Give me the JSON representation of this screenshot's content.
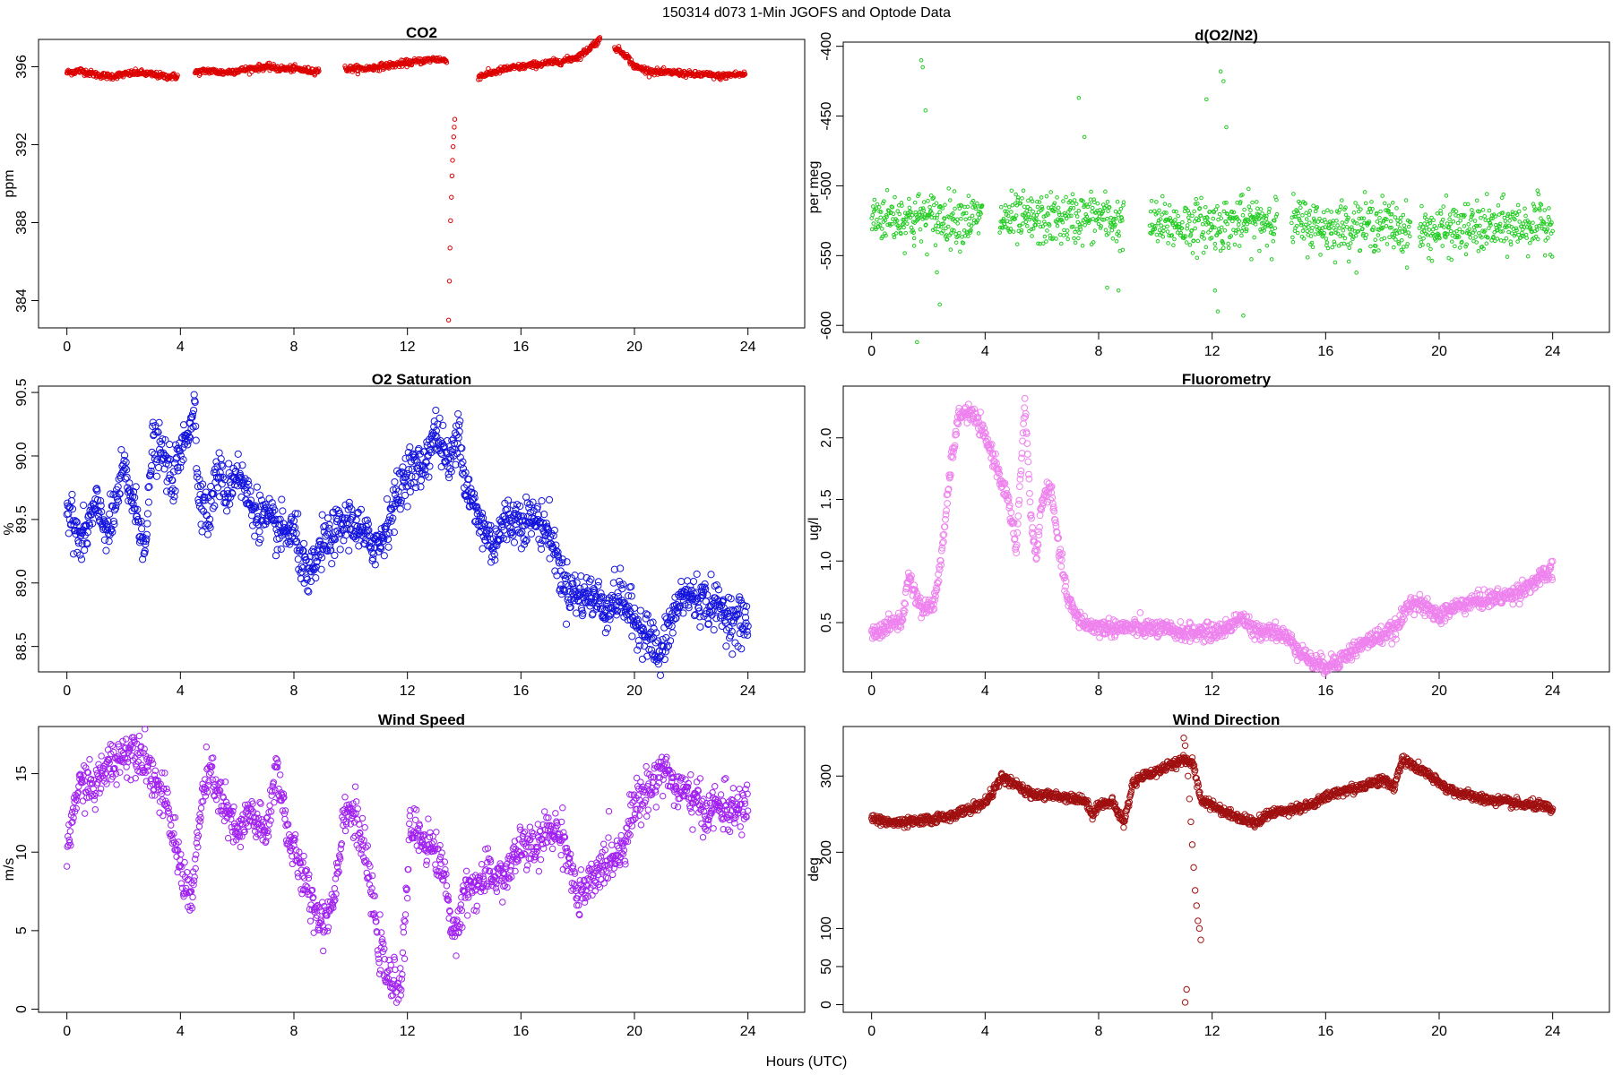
{
  "figure": {
    "title": "150314   d073   1-Min  JGOFS and Optode Data",
    "xlabel": "Hours (UTC)"
  },
  "chart_data": [
    {
      "id": "co2",
      "type": "scatter",
      "title": "CO2",
      "ylabel": "ppm",
      "color": "#dd0000",
      "marker_radius": 2.2,
      "xlim": [
        -1,
        26
      ],
      "ylim": [
        382.6,
        397.4
      ],
      "xticks": [
        0,
        4,
        8,
        12,
        16,
        20,
        24
      ],
      "yticks": [
        384,
        388,
        392,
        396
      ],
      "x_knots": [
        0,
        0.5,
        1,
        1.5,
        2,
        2.5,
        3,
        3.5,
        3.9,
        4.5,
        5,
        5.5,
        6,
        6.5,
        7,
        7.5,
        8,
        8.5,
        8.9,
        9.8,
        10.5,
        11,
        11.5,
        12,
        12.5,
        13,
        13.4,
        14.5,
        15,
        15.5,
        16,
        16.5,
        17,
        17.5,
        18,
        18.3,
        18.6,
        18.8,
        19.0,
        19.3,
        19.7,
        20,
        20.5,
        21,
        21.5,
        22,
        22.5,
        23,
        23.5,
        23.9
      ],
      "y_knots": [
        395.7,
        395.8,
        395.6,
        395.5,
        395.6,
        395.7,
        395.6,
        395.5,
        395.5,
        395.7,
        395.8,
        395.7,
        395.8,
        395.9,
        396.0,
        395.9,
        395.9,
        395.8,
        395.8,
        395.9,
        395.9,
        396.0,
        396.1,
        396.2,
        396.3,
        396.4,
        396.3,
        395.5,
        395.7,
        395.9,
        396.0,
        396.1,
        396.2,
        396.3,
        396.5,
        396.8,
        397.2,
        397.4,
        397.2,
        397.0,
        396.6,
        396.0,
        395.8,
        395.7,
        395.7,
        395.6,
        395.6,
        395.5,
        395.6,
        395.6
      ],
      "gaps": [
        [
          3.9,
          4.5
        ],
        [
          8.9,
          9.8
        ],
        [
          13.4,
          14.5
        ],
        [
          18.8,
          19.3
        ]
      ],
      "noise": 0.08,
      "spike": {
        "x": [
          13.45,
          13.48,
          13.5,
          13.52,
          13.55,
          13.57,
          13.59,
          13.61,
          13.63,
          13.65,
          13.67
        ],
        "y": [
          383.0,
          385.0,
          386.7,
          388.1,
          389.3,
          390.4,
          391.2,
          391.9,
          392.4,
          392.9,
          393.3
        ]
      }
    },
    {
      "id": "do2n2",
      "type": "scatter",
      "title": "d(O2/N2)",
      "ylabel": "per meg",
      "color": "#22cc22",
      "marker_radius": 1.8,
      "xlim": [
        -1,
        26
      ],
      "ylim": [
        -605,
        -397
      ],
      "xticks": [
        0,
        4,
        8,
        12,
        16,
        20,
        24
      ],
      "yticks": [
        -400,
        -450,
        -500,
        -550,
        -600
      ],
      "x_knots": [
        0,
        2,
        4,
        6,
        8,
        9,
        12,
        14.3,
        16,
        18,
        19,
        22,
        24
      ],
      "y_knots": [
        -522,
        -523,
        -524,
        -525,
        -522,
        -528,
        -528,
        -524,
        -530,
        -527,
        -533,
        -530,
        -527
      ],
      "gaps": [
        [
          3.9,
          4.5
        ],
        [
          8.9,
          9.8
        ],
        [
          14.3,
          14.8
        ],
        [
          19.0,
          19.3
        ]
      ],
      "noise": 9,
      "outliers": {
        "x": [
          1.6,
          1.75,
          1.8,
          1.9,
          2.4,
          7.3,
          7.5,
          8.3,
          8.7,
          11.8,
          12.1,
          12.2,
          12.3,
          12.4,
          12.5,
          13.1,
          2.3,
          1.5
        ],
        "y": [
          -612,
          -410,
          -415,
          -446,
          -585,
          -437,
          -465,
          -573,
          -575,
          -438,
          -575,
          -590,
          -418,
          -425,
          -458,
          -593,
          -562,
          -543
        ]
      }
    },
    {
      "id": "o2sat",
      "type": "scatter",
      "title": "O2 Saturation",
      "ylabel": "%",
      "color": "#1414dd",
      "marker_radius": 3.6,
      "xlim": [
        -1,
        26
      ],
      "ylim": [
        88.3,
        90.55
      ],
      "xticks": [
        0,
        4,
        8,
        12,
        16,
        20,
        24
      ],
      "yticks": [
        88.5,
        89.0,
        89.5,
        90.0,
        90.5
      ],
      "x_knots": [
        0,
        0.5,
        1,
        1.5,
        2,
        2.5,
        2.8,
        3.0,
        3.4,
        3.7,
        4,
        4.5,
        4.6,
        5,
        5.3,
        5.6,
        6,
        6.5,
        7,
        7.5,
        8,
        8.5,
        9,
        9.5,
        10,
        10.5,
        11,
        11.5,
        12,
        12.5,
        13,
        13.5,
        13.8,
        14,
        14.5,
        15,
        15.5,
        16,
        16.5,
        17,
        17.5,
        18,
        18.5,
        19,
        19.5,
        20,
        20.5,
        20.9,
        21.3,
        21.7,
        22,
        22.5,
        23,
        23.5,
        24
      ],
      "y_knots": [
        89.6,
        89.3,
        89.6,
        89.4,
        89.9,
        89.5,
        89.3,
        90.1,
        90.0,
        89.8,
        90.0,
        90.4,
        89.8,
        89.5,
        89.9,
        89.7,
        89.9,
        89.6,
        89.5,
        89.4,
        89.4,
        89.0,
        89.3,
        89.4,
        89.5,
        89.35,
        89.3,
        89.6,
        89.9,
        89.9,
        90.2,
        89.9,
        90.3,
        89.8,
        89.5,
        89.3,
        89.5,
        89.5,
        89.5,
        89.4,
        89.0,
        88.9,
        88.9,
        88.8,
        88.9,
        88.7,
        88.6,
        88.4,
        88.7,
        88.9,
        88.9,
        88.85,
        88.8,
        88.7,
        88.7
      ],
      "gaps": [],
      "noise": 0.09
    },
    {
      "id": "fluor",
      "type": "scatter",
      "title": "Fluorometry",
      "ylabel": "ug/l",
      "color": "#ee82ee",
      "marker_radius": 3.4,
      "xlim": [
        -1,
        26
      ],
      "ylim": [
        0.1,
        2.42
      ],
      "xticks": [
        0,
        4,
        8,
        12,
        16,
        20,
        24
      ],
      "yticks": [
        0.5,
        1.0,
        1.5,
        2.0
      ],
      "x_knots": [
        0,
        0.4,
        0.8,
        1.1,
        1.3,
        1.5,
        1.8,
        2.2,
        2.5,
        2.8,
        3.1,
        3.5,
        3.8,
        4.2,
        4.5,
        4.8,
        5.1,
        5.4,
        5.6,
        5.8,
        6.0,
        6.3,
        6.6,
        6.9,
        7.2,
        7.6,
        8,
        9,
        10,
        11,
        12,
        12.5,
        13,
        13.5,
        14,
        14.5,
        15,
        15.5,
        16,
        16.5,
        17,
        17.5,
        18,
        18.5,
        19,
        19.5,
        20,
        20.5,
        21,
        21.5,
        22,
        22.5,
        23,
        23.5,
        24
      ],
      "y_knots": [
        0.4,
        0.45,
        0.5,
        0.52,
        0.9,
        0.75,
        0.6,
        0.65,
        1.1,
        1.8,
        2.2,
        2.2,
        2.1,
        1.9,
        1.7,
        1.5,
        1.1,
        2.3,
        1.4,
        1.0,
        1.5,
        1.6,
        1.1,
        0.7,
        0.55,
        0.48,
        0.46,
        0.46,
        0.45,
        0.42,
        0.42,
        0.45,
        0.55,
        0.42,
        0.45,
        0.4,
        0.3,
        0.18,
        0.15,
        0.2,
        0.28,
        0.35,
        0.4,
        0.45,
        0.68,
        0.62,
        0.55,
        0.62,
        0.66,
        0.68,
        0.7,
        0.72,
        0.78,
        0.85,
        0.92
      ],
      "gaps": [],
      "noise": 0.035
    },
    {
      "id": "wspd",
      "type": "scatter",
      "title": "Wind Speed",
      "ylabel": "m/s",
      "color": "#a020f0",
      "marker_radius": 3.2,
      "xlim": [
        -1,
        26
      ],
      "ylim": [
        -0.2,
        18
      ],
      "xticks": [
        0,
        4,
        8,
        12,
        16,
        20,
        24
      ],
      "yticks": [
        0,
        5,
        10,
        15
      ],
      "x_knots": [
        0,
        0.3,
        0.6,
        1,
        1.4,
        1.8,
        2.2,
        2.6,
        3,
        3.5,
        4,
        4.4,
        4.8,
        5.1,
        5.5,
        6,
        6.5,
        7,
        7.4,
        7.8,
        8.2,
        8.6,
        9,
        9.4,
        9.8,
        10.2,
        10.6,
        11,
        11.4,
        11.8,
        12.1,
        12.5,
        13,
        13.4,
        13.6,
        14,
        14.5,
        15,
        15.5,
        16,
        16.5,
        17,
        17.5,
        18,
        18.5,
        19,
        19.5,
        20,
        20.5,
        21,
        21.5,
        22,
        22.5,
        23,
        23.5,
        24
      ],
      "y_knots": [
        9.8,
        13.5,
        14.5,
        14,
        15.5,
        16,
        16.5,
        16.5,
        15,
        13,
        9,
        7,
        14,
        15,
        13,
        11,
        12.5,
        11,
        15.5,
        11,
        9,
        7,
        5.5,
        7,
        13,
        12,
        9,
        4,
        1.5,
        2,
        11.5,
        11,
        10,
        8,
        4,
        7.5,
        8,
        8.5,
        8.5,
        10.5,
        10,
        11.5,
        11,
        7,
        8,
        9.5,
        10,
        13,
        14,
        15.5,
        14,
        13.5,
        12.5,
        13,
        12.5,
        13
      ],
      "gaps": [],
      "noise": 0.7
    },
    {
      "id": "wdir",
      "type": "scatter",
      "title": "Wind Direction",
      "ylabel": "deg",
      "color": "#a01010",
      "marker_radius": 3.2,
      "xlim": [
        -1,
        26
      ],
      "ylim": [
        -10,
        365
      ],
      "xticks": [
        0,
        4,
        8,
        12,
        16,
        20,
        24
      ],
      "yticks": [
        0,
        50,
        100,
        200,
        300
      ],
      "x_knots": [
        0,
        0.5,
        1,
        2,
        3,
        4,
        4.6,
        5,
        5.5,
        6,
        6.5,
        7,
        7.5,
        7.8,
        8,
        8.5,
        8.9,
        9.2,
        9.5,
        10,
        10.5,
        11,
        11.3,
        11.6,
        12,
        12.5,
        13,
        13.5,
        14,
        14.5,
        15,
        15.5,
        16,
        16.5,
        17,
        17.5,
        18,
        18.4,
        18.7,
        19,
        19.5,
        20,
        20.5,
        21,
        21.5,
        22,
        22.5,
        23,
        23.5,
        24
      ],
      "y_knots": [
        245,
        240,
        238,
        242,
        250,
        265,
        298,
        290,
        278,
        275,
        274,
        272,
        268,
        250,
        263,
        265,
        238,
        290,
        300,
        305,
        315,
        320,
        320,
        270,
        262,
        252,
        245,
        238,
        250,
        255,
        258,
        262,
        272,
        280,
        283,
        290,
        295,
        285,
        322,
        315,
        305,
        290,
        280,
        275,
        270,
        268,
        265,
        262,
        262,
        255
      ],
      "gaps": [],
      "noise": 3,
      "spike": {
        "x": [
          11.0,
          11.05,
          11.1,
          11.15,
          11.2,
          11.25,
          11.3,
          11.35,
          11.4,
          11.45,
          11.5,
          11.55,
          11.6,
          11.1,
          11.05
        ],
        "y": [
          350,
          340,
          320,
          300,
          270,
          240,
          210,
          180,
          150,
          130,
          110,
          100,
          85,
          20,
          3
        ]
      }
    }
  ]
}
